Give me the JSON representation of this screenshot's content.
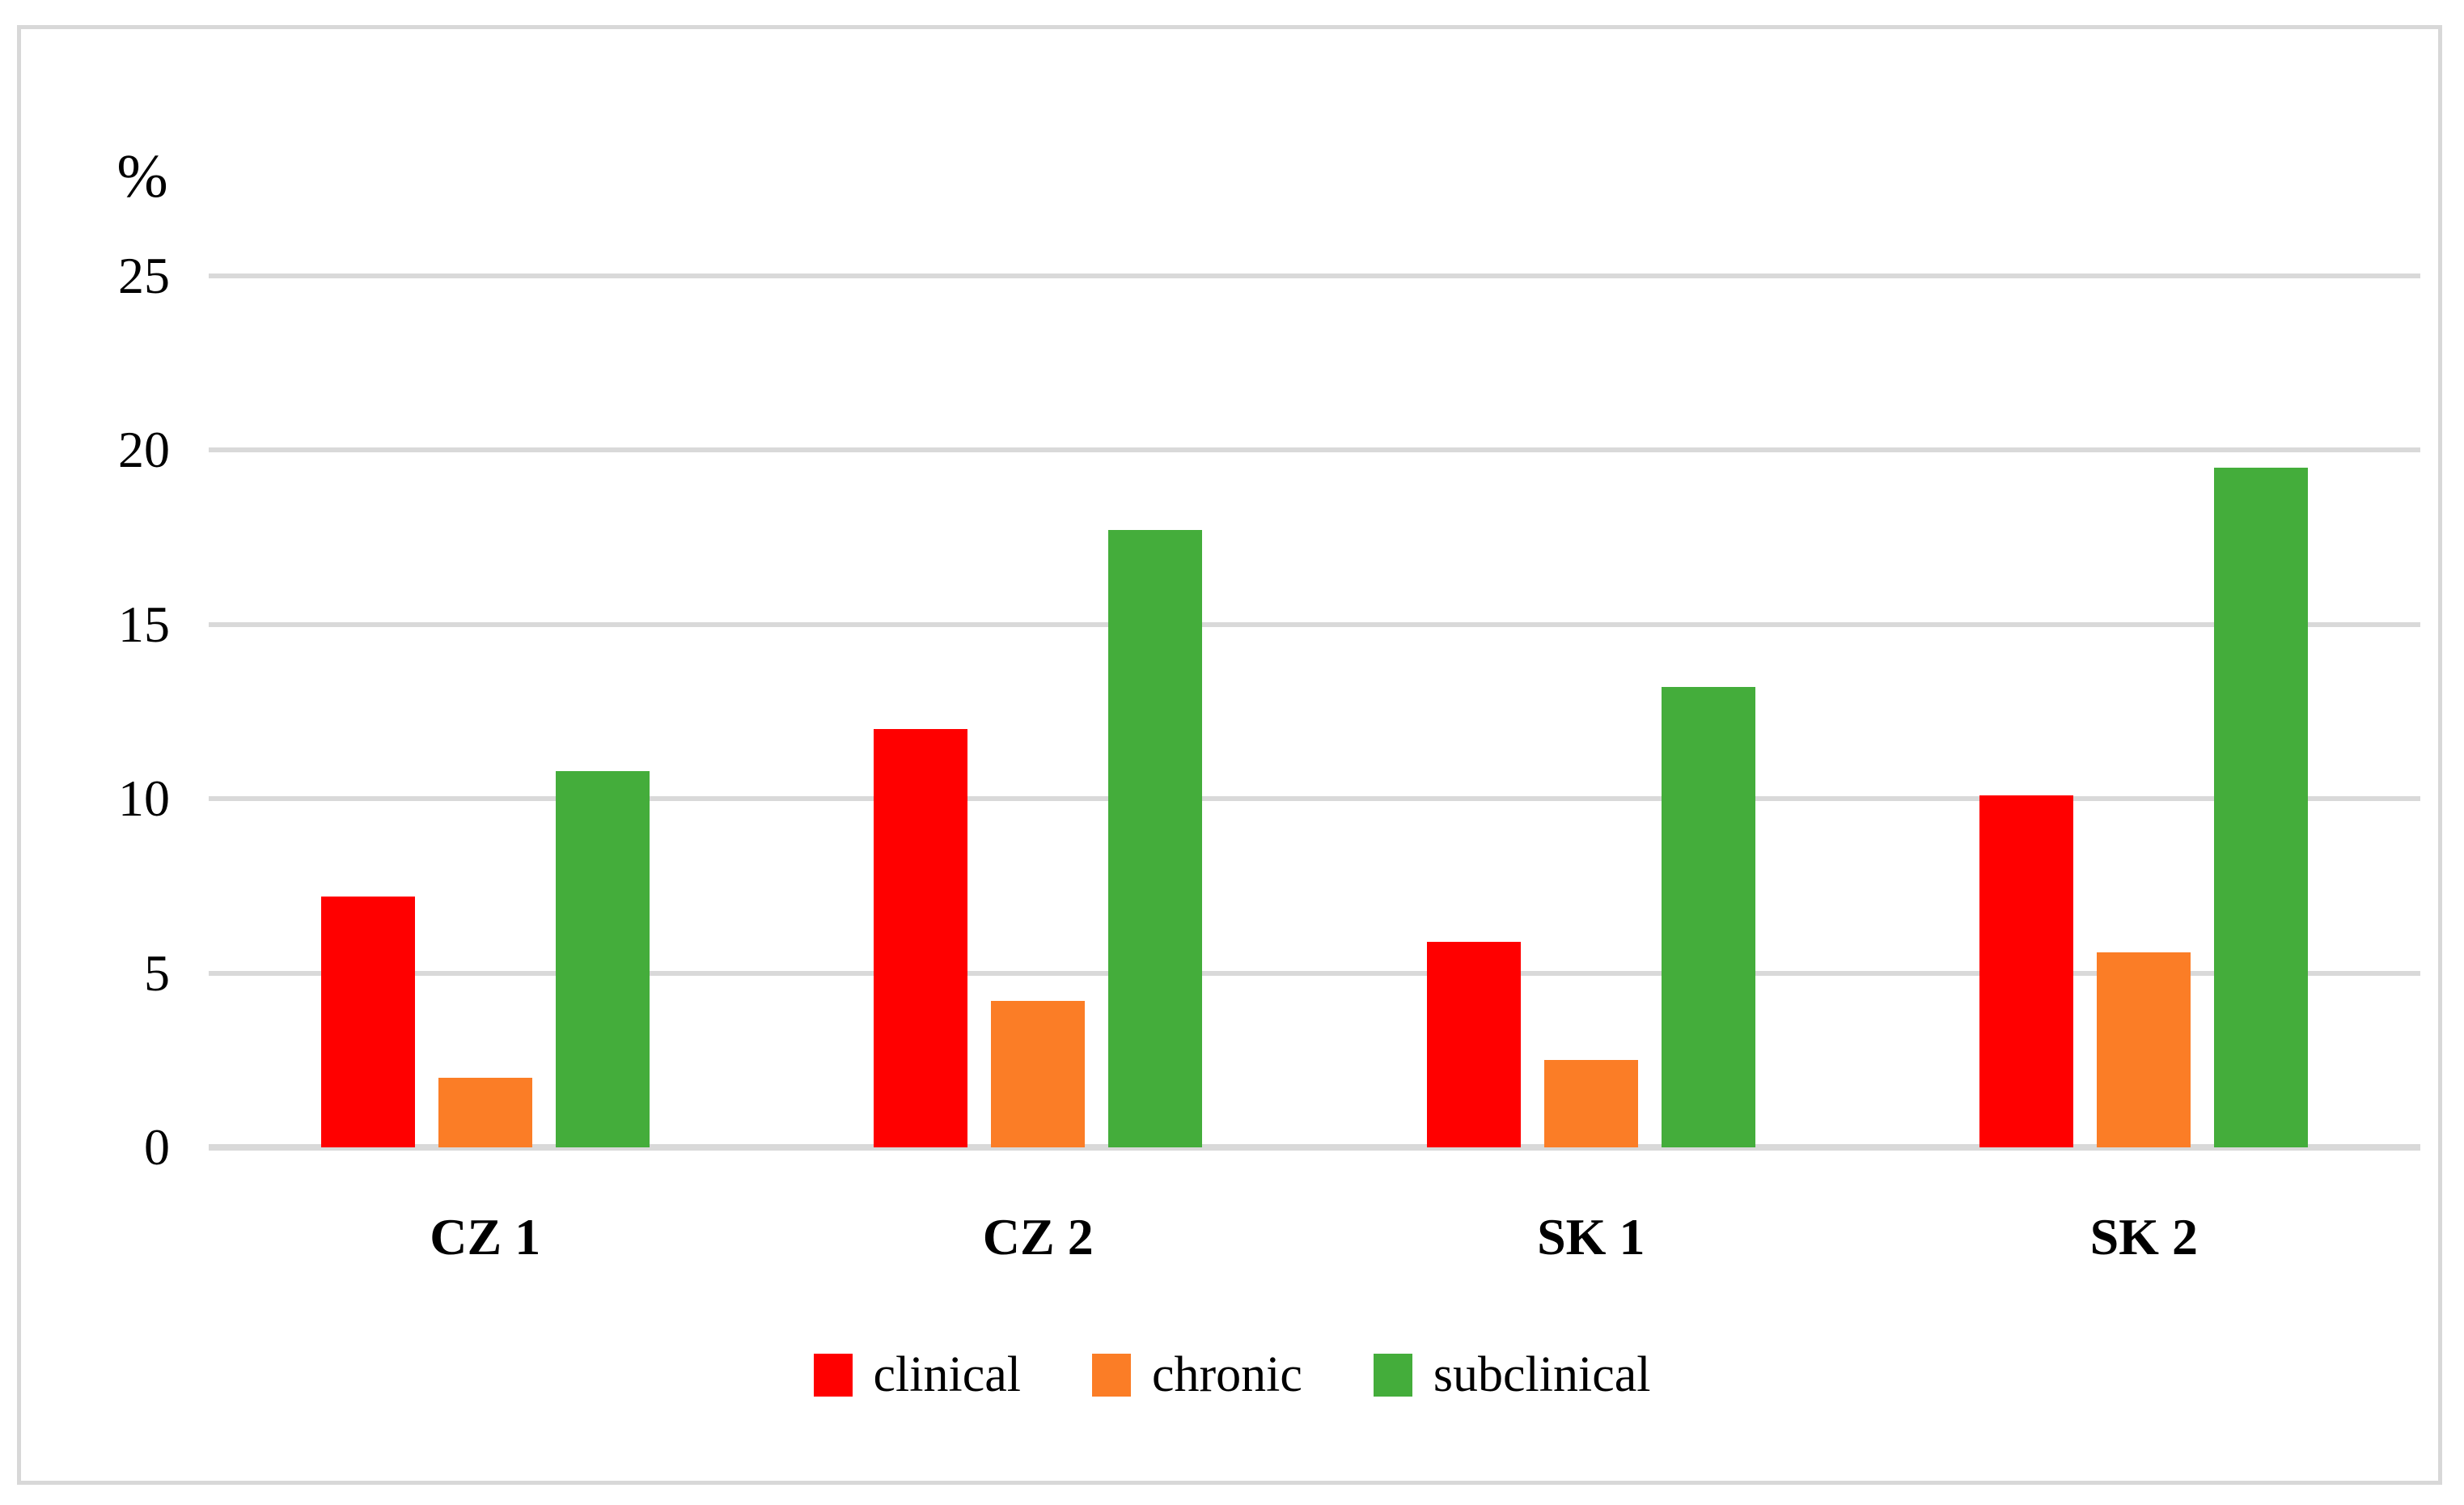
{
  "chart_data": {
    "type": "bar",
    "title": "",
    "xlabel": "",
    "ylabel": "%",
    "ylim": [
      0,
      25
    ],
    "ytick_step": 5,
    "yticks": [
      0,
      5,
      10,
      15,
      20,
      25
    ],
    "grid": true,
    "legend_position": "bottom",
    "categories": [
      "CZ 1",
      "CZ 2",
      "SK 1",
      "SK 2"
    ],
    "series": [
      {
        "name": "clinical",
        "color": "#FF0000",
        "values": [
          7.2,
          12.0,
          5.9,
          10.1
        ]
      },
      {
        "name": "chronic",
        "color": "#FB7D26",
        "values": [
          2.0,
          4.2,
          2.5,
          5.6
        ]
      },
      {
        "name": "subclinical",
        "color": "#44AD3B",
        "values": [
          10.8,
          17.7,
          13.2,
          19.5
        ]
      }
    ],
    "colors": {
      "gridline": "#D9D9D9",
      "frame_border": "#D8D8D8",
      "background": "#FFFFFF",
      "text": "#000000"
    }
  }
}
